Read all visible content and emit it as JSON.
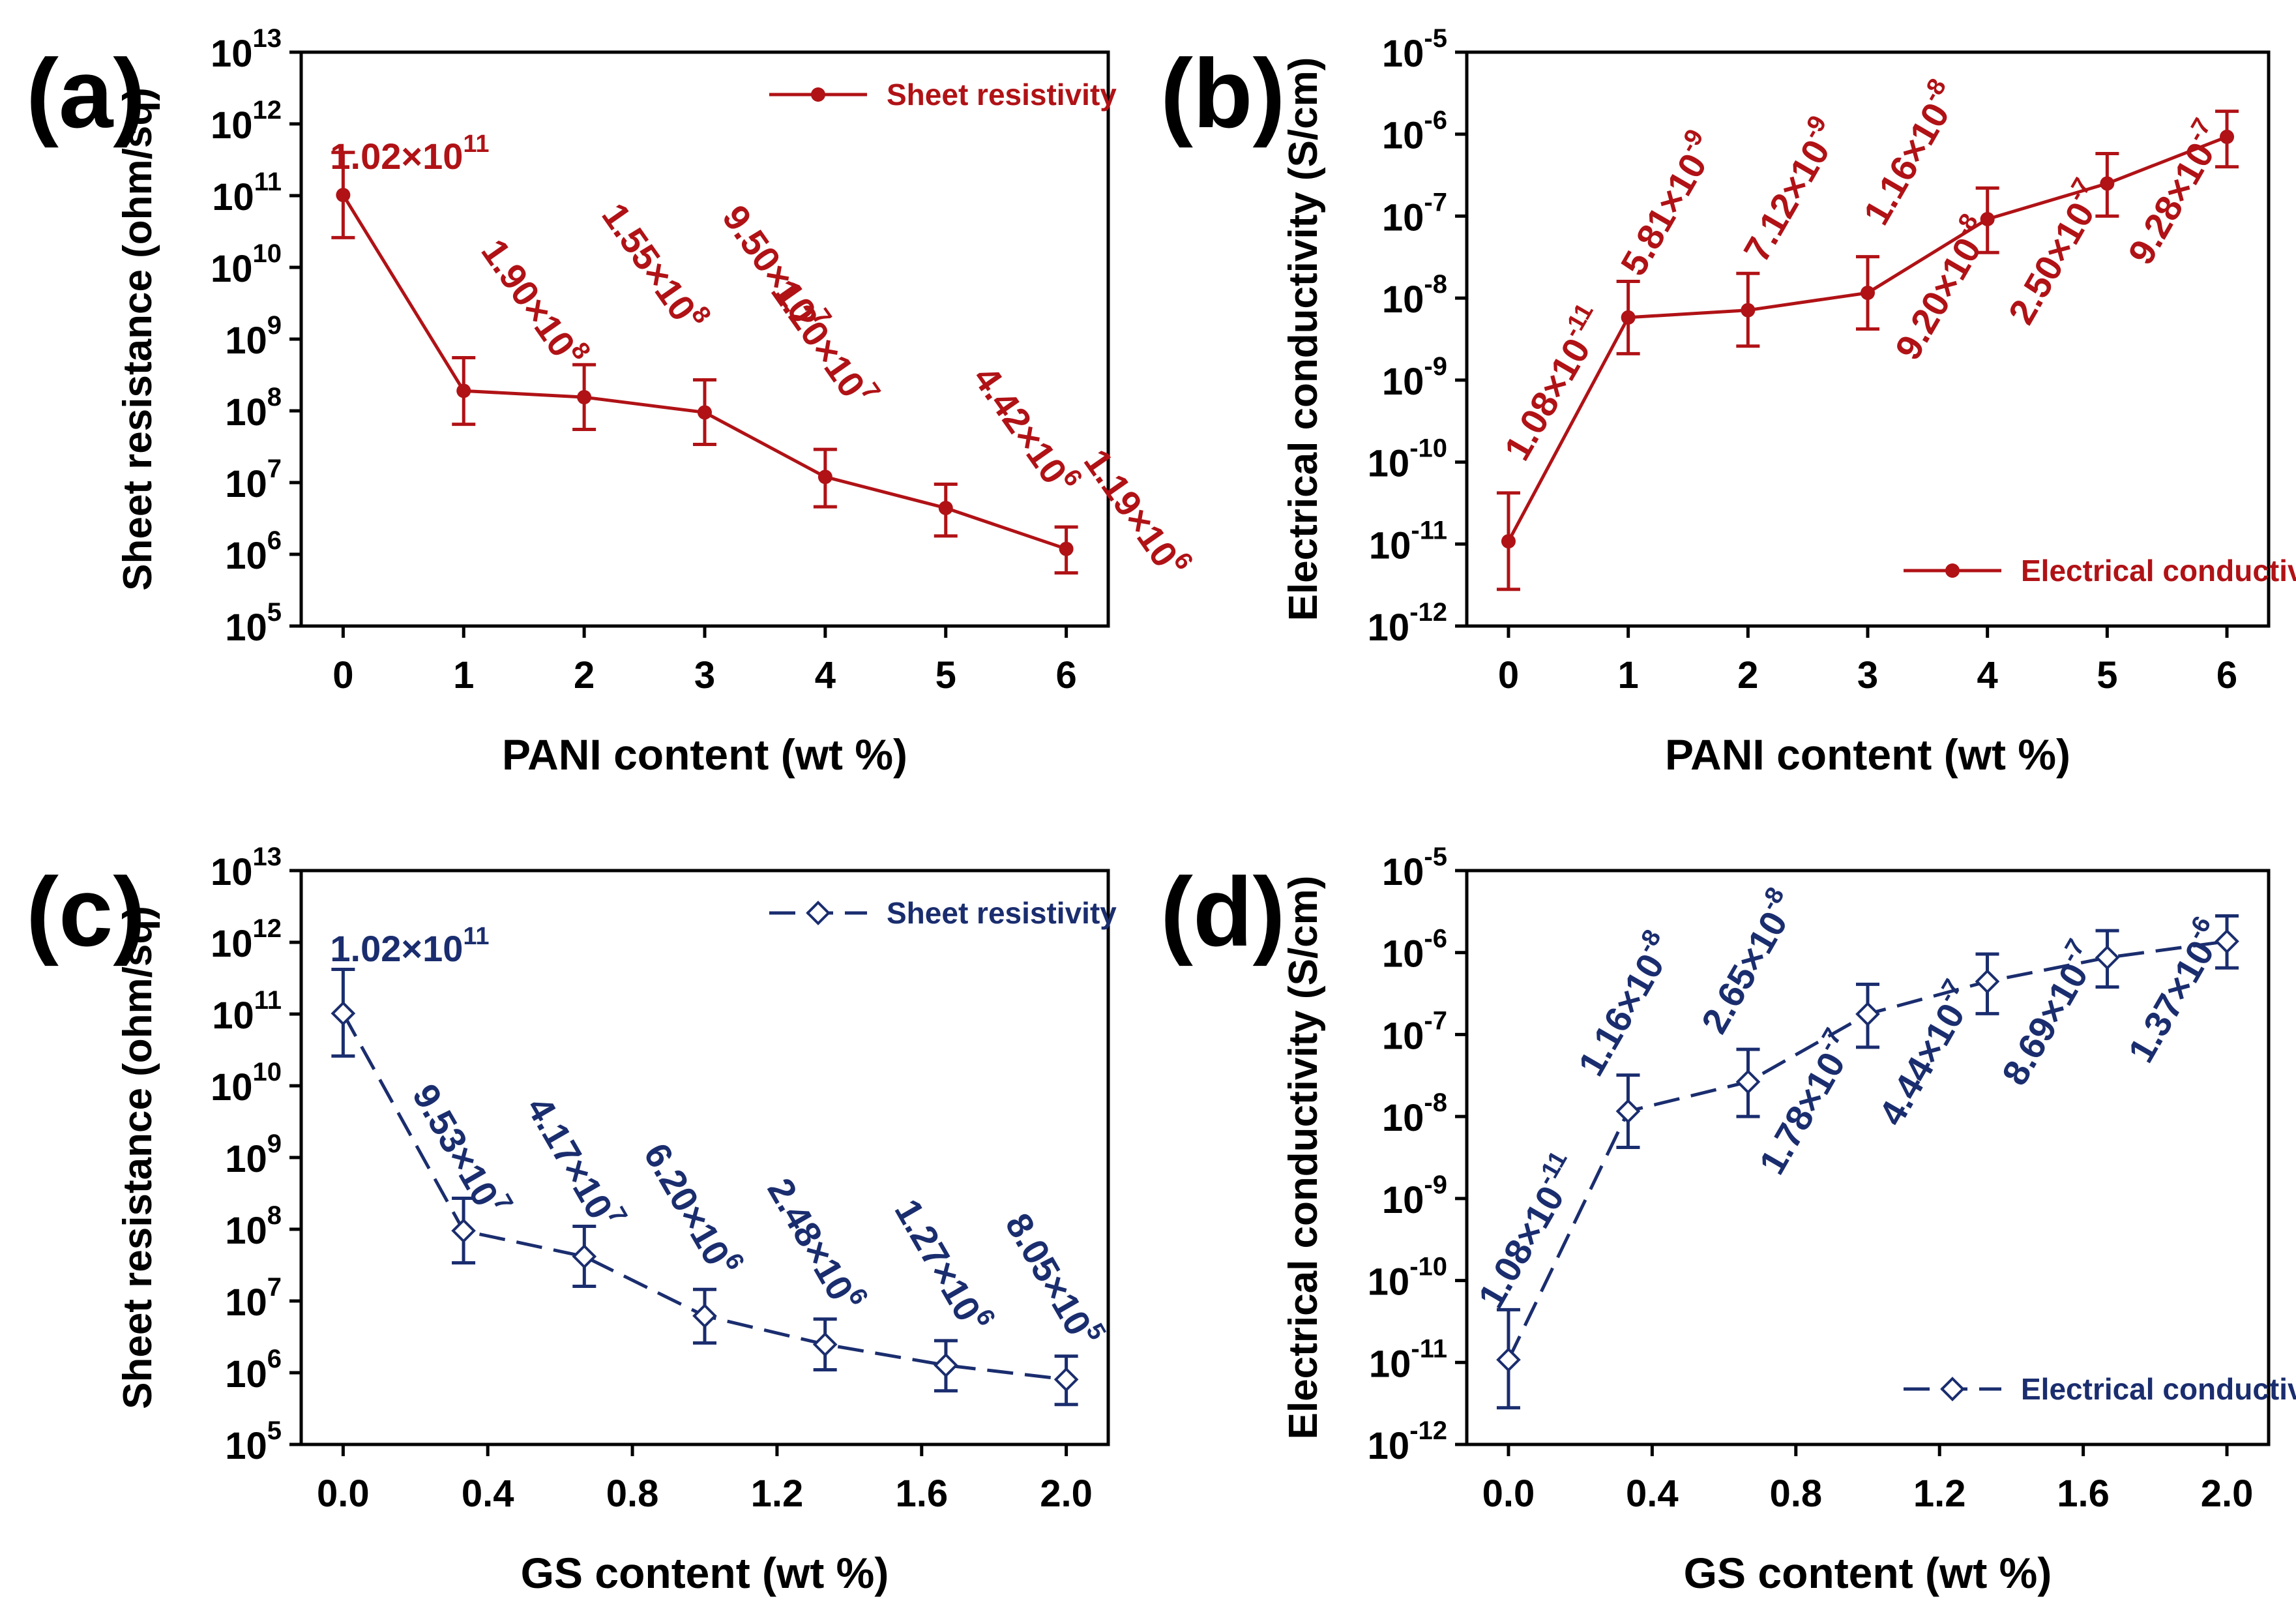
{
  "figure": {
    "colors": {
      "red": "#b01216",
      "blue": "#1a2d6e",
      "axis": "#000000"
    }
  },
  "chart_data": [
    {
      "panel_label": "(a)",
      "type": "line",
      "scale_y": "log",
      "xlabel": "PANI content (wt %)",
      "ylabel": "Sheet resistance (ohm/sq)",
      "xlim": [
        0,
        6
      ],
      "ylim": [
        100000.0,
        10000000000000.0
      ],
      "x_ticks": [
        "0",
        "1",
        "2",
        "3",
        "4",
        "5",
        "6"
      ],
      "y_ticks": [
        {
          "base": "10",
          "exp": "5"
        },
        {
          "base": "10",
          "exp": "6"
        },
        {
          "base": "10",
          "exp": "7"
        },
        {
          "base": "10",
          "exp": "8"
        },
        {
          "base": "10",
          "exp": "9"
        },
        {
          "base": "10",
          "exp": "10"
        },
        {
          "base": "10",
          "exp": "11"
        },
        {
          "base": "10",
          "exp": "12"
        },
        {
          "base": "10",
          "exp": "13"
        }
      ],
      "legend": {
        "text": "Sheet resistivity",
        "placement": "top-right",
        "marker": "filled-circle",
        "line": "solid"
      },
      "color": "#b01216",
      "x": [
        0,
        1,
        2,
        3,
        4,
        5,
        6
      ],
      "y": [
        102000000000.0,
        190000000.0,
        155000000.0,
        95000000.0,
        12000000.0,
        4420000.0,
        1190000.0
      ],
      "y_err_low": [
        26000000000.0,
        65000000.0,
        55000000.0,
        34000000.0,
        4600000.0,
        1800000.0,
        550000.0
      ],
      "y_err_high": [
        400000000000.0,
        550000000.0,
        440000000.0,
        270000000.0,
        29000000.0,
        9500000.0,
        2400000.0
      ],
      "point_labels": [
        {
          "mant": "1.02",
          "exp": "11"
        },
        {
          "mant": "1.90",
          "exp": "8"
        },
        {
          "mant": "1.55",
          "exp": "8"
        },
        {
          "mant": "9.50",
          "exp": "7"
        },
        {
          "mant": "1.20",
          "exp": "7"
        },
        {
          "mant": "4.42",
          "exp": "6"
        },
        {
          "mant": "1.19",
          "exp": "6"
        }
      ]
    },
    {
      "panel_label": "(b)",
      "type": "line",
      "scale_y": "log",
      "xlabel": "PANI content (wt %)",
      "ylabel": "Electrical conductivity (S/cm)",
      "xlim": [
        0,
        6
      ],
      "ylim": [
        1e-12,
        1e-05
      ],
      "x_ticks": [
        "0",
        "1",
        "2",
        "3",
        "4",
        "5",
        "6"
      ],
      "y_ticks": [
        {
          "base": "10",
          "exp": "-12"
        },
        {
          "base": "10",
          "exp": "-11"
        },
        {
          "base": "10",
          "exp": "-10"
        },
        {
          "base": "10",
          "exp": "-9"
        },
        {
          "base": "10",
          "exp": "-8"
        },
        {
          "base": "10",
          "exp": "-7"
        },
        {
          "base": "10",
          "exp": "-6"
        },
        {
          "base": "10",
          "exp": "-5"
        }
      ],
      "legend": {
        "text": "Electrical conductivity",
        "placement": "bottom-right",
        "marker": "filled-circle",
        "line": "solid"
      },
      "color": "#b01216",
      "x": [
        0,
        1,
        2,
        3,
        4,
        5,
        6
      ],
      "y": [
        1.08e-11,
        5.81e-09,
        7.12e-09,
        1.16e-08,
        9.2e-08,
        2.5e-07,
        9.28e-07
      ],
      "y_err_low": [
        2.8e-12,
        2.1e-09,
        2.6e-09,
        4.2e-09,
        3.6e-08,
        1e-07,
        4e-07
      ],
      "y_err_high": [
        4.2e-11,
        1.6e-08,
        2e-08,
        3.2e-08,
        2.2e-07,
        5.8e-07,
        1.9e-06
      ],
      "point_labels": [
        {
          "mant": "1.08",
          "exp": "-11"
        },
        {
          "mant": "5.81",
          "exp": "-9"
        },
        {
          "mant": "7.12",
          "exp": "-9"
        },
        {
          "mant": "1.16",
          "exp": "-8"
        },
        {
          "mant": "9.20",
          "exp": "-8"
        },
        {
          "mant": "2.50",
          "exp": "-7"
        },
        {
          "mant": "9.28",
          "exp": "-7"
        }
      ]
    },
    {
      "panel_label": "(c)",
      "type": "line",
      "scale_y": "log",
      "xlabel": "GS content (wt %)",
      "ylabel": "Sheet resistance (ohm/sq)",
      "xlim": [
        0,
        2.0
      ],
      "ylim": [
        100000.0,
        10000000000000.0
      ],
      "x_ticks": [
        "0.0",
        "0.4",
        "0.8",
        "1.2",
        "1.6",
        "2.0"
      ],
      "y_ticks": [
        {
          "base": "10",
          "exp": "5"
        },
        {
          "base": "10",
          "exp": "6"
        },
        {
          "base": "10",
          "exp": "7"
        },
        {
          "base": "10",
          "exp": "8"
        },
        {
          "base": "10",
          "exp": "9"
        },
        {
          "base": "10",
          "exp": "10"
        },
        {
          "base": "10",
          "exp": "11"
        },
        {
          "base": "10",
          "exp": "12"
        },
        {
          "base": "10",
          "exp": "13"
        }
      ],
      "legend": {
        "text": "Sheet resistivity",
        "placement": "top-right",
        "marker": "open-diamond",
        "line": "dashed"
      },
      "color": "#1a2d6e",
      "x": [
        0,
        0.333,
        0.667,
        1.0,
        1.333,
        1.667,
        2.0
      ],
      "y": [
        102000000000.0,
        95300000.0,
        41700000.0,
        6200000.0,
        2480000.0,
        1270000.0,
        805000.0
      ],
      "y_err_low": [
        26000000000.0,
        34000000.0,
        16000000.0,
        2600000.0,
        1100000.0,
        560000.0,
        360000.0
      ],
      "y_err_high": [
        420000000000.0,
        270000000.0,
        110000000.0,
        14500000.0,
        5600000.0,
        2800000.0,
        1700000.0
      ],
      "point_labels": [
        {
          "mant": "1.02",
          "exp": "11"
        },
        {
          "mant": "9.53",
          "exp": "7"
        },
        {
          "mant": "4.17",
          "exp": "7"
        },
        {
          "mant": "6.20",
          "exp": "6"
        },
        {
          "mant": "2.48",
          "exp": "6"
        },
        {
          "mant": "1.27",
          "exp": "6"
        },
        {
          "mant": "8.05",
          "exp": "5"
        }
      ]
    },
    {
      "panel_label": "(d)",
      "type": "line",
      "scale_y": "log",
      "xlabel": "GS content (wt %)",
      "ylabel": "Electrical conductivity (S/cm)",
      "xlim": [
        0,
        2.0
      ],
      "ylim": [
        1e-12,
        1e-05
      ],
      "x_ticks": [
        "0.0",
        "0.4",
        "0.8",
        "1.2",
        "1.6",
        "2.0"
      ],
      "y_ticks": [
        {
          "base": "10",
          "exp": "-12"
        },
        {
          "base": "10",
          "exp": "-11"
        },
        {
          "base": "10",
          "exp": "-10"
        },
        {
          "base": "10",
          "exp": "-9"
        },
        {
          "base": "10",
          "exp": "-8"
        },
        {
          "base": "10",
          "exp": "-7"
        },
        {
          "base": "10",
          "exp": "-6"
        },
        {
          "base": "10",
          "exp": "-5"
        }
      ],
      "legend": {
        "text": "Electrical conductivity",
        "placement": "bottom-right",
        "marker": "open-diamond",
        "line": "dashed"
      },
      "color": "#1a2d6e",
      "x": [
        0,
        0.333,
        0.667,
        1.0,
        1.333,
        1.667,
        2.0
      ],
      "y": [
        1.08e-11,
        1.16e-08,
        2.65e-08,
        1.78e-07,
        4.44e-07,
        8.69e-07,
        1.37e-06
      ],
      "y_err_low": [
        2.8e-12,
        4.2e-09,
        1e-08,
        7e-08,
        1.8e-07,
        3.8e-07,
        6.5e-07
      ],
      "y_err_high": [
        4.4e-11,
        3.2e-08,
        6.6e-08,
        4.1e-07,
        9.6e-07,
        1.85e-06,
        2.8e-06
      ],
      "point_labels": [
        {
          "mant": "1.08",
          "exp": "-11"
        },
        {
          "mant": "1.16",
          "exp": "-8"
        },
        {
          "mant": "2.65",
          "exp": "-8"
        },
        {
          "mant": "1.78",
          "exp": "-7"
        },
        {
          "mant": "4.44",
          "exp": "-7"
        },
        {
          "mant": "8.69",
          "exp": "-7"
        },
        {
          "mant": "1.37",
          "exp": "-6"
        }
      ]
    }
  ]
}
